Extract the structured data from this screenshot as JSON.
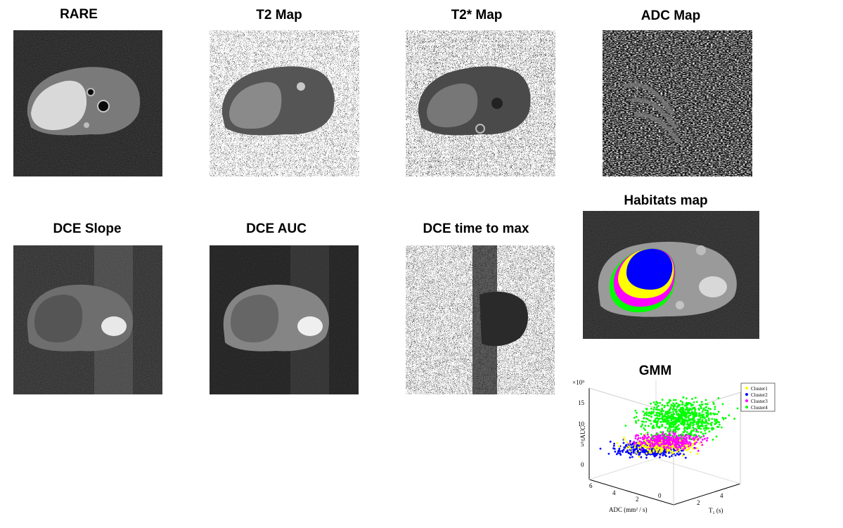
{
  "panels": {
    "rare": {
      "title": "RARE"
    },
    "t2_map": {
      "title": "T2 Map"
    },
    "t2star_map": {
      "title": "T2* Map"
    },
    "adc_map": {
      "title": "ADC Map"
    },
    "dce_slope": {
      "title": "DCE Slope"
    },
    "dce_auc": {
      "title": "DCE AUC"
    },
    "dce_ttm": {
      "title": "DCE time to max"
    },
    "habitats": {
      "title": "Habitats map"
    },
    "gmm": {
      "title": "GMM"
    }
  },
  "chart_data": {
    "type": "scatter",
    "title": "GMM",
    "xlabel": "ADC (mm² / s)",
    "ylabel": "T₂ (s)",
    "zlabel": "tAUC",
    "z_exponent_label": "×10⁹",
    "x_ticks": [
      "6",
      "4",
      "2",
      "0"
    ],
    "y_ticks": [
      "2",
      "4"
    ],
    "z_ticks": [
      "15",
      "10",
      "5",
      "0"
    ],
    "zlim": [
      0,
      15
    ],
    "legend_position": "top-right",
    "series": [
      {
        "name": "Cluster1",
        "color": "#ffff00",
        "z_center": 4.5,
        "z_spread": 1.5
      },
      {
        "name": "Cluster2",
        "color": "#0000ff",
        "z_center": 3.5,
        "z_spread": 1.5
      },
      {
        "name": "Cluster3",
        "color": "#ff00ff",
        "z_center": 5.5,
        "z_spread": 1.5
      },
      {
        "name": "Cluster4",
        "color": "#00ff00",
        "z_center": 11,
        "z_spread": 4
      }
    ]
  }
}
